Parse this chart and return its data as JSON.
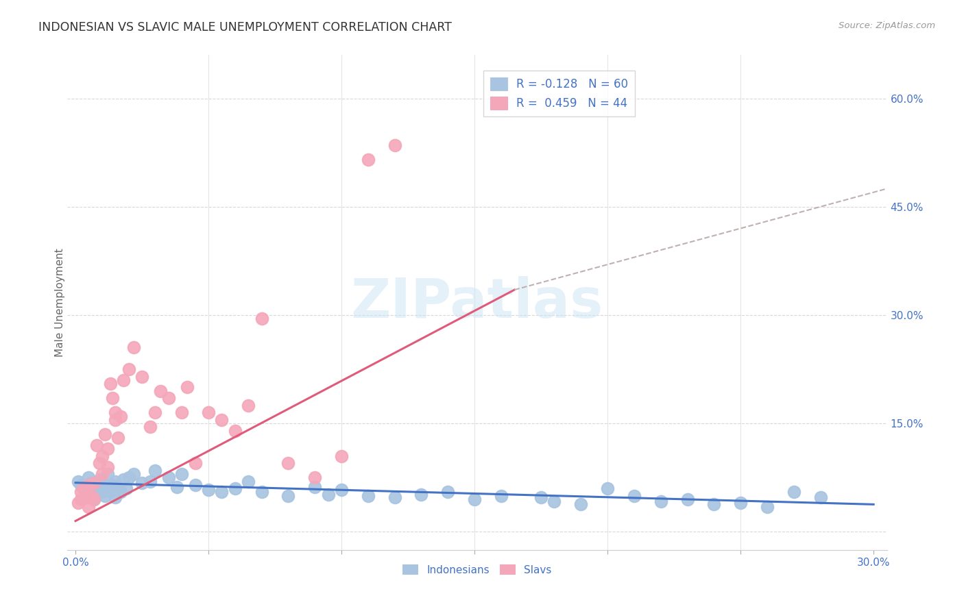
{
  "title": "INDONESIAN VS SLAVIC MALE UNEMPLOYMENT CORRELATION CHART",
  "source": "Source: ZipAtlas.com",
  "ylabel": "Male Unemployment",
  "xlim": [
    0.0,
    0.3
  ],
  "ylim": [
    0.0,
    0.65
  ],
  "xtick_vals": [
    0.0,
    0.05,
    0.1,
    0.15,
    0.2,
    0.25,
    0.3
  ],
  "xtick_labels_shown": {
    "0.0": "0.0%",
    "0.30": "30.0%"
  },
  "ytick_right_vals": [
    0.15,
    0.3,
    0.45,
    0.6
  ],
  "ytick_right_labels": [
    "15.0%",
    "30.0%",
    "45.0%",
    "60.0%"
  ],
  "color_indonesian": "#a8c4e0",
  "color_slav": "#f4a7b9",
  "color_line_indonesian": "#4472c4",
  "color_line_slav": "#e05a7a",
  "color_dashed": "#c0b0b0",
  "color_blue": "#4472c4",
  "color_grid": "#d8d8d8",
  "background_color": "#ffffff",
  "watermark": "ZIPatlas",
  "legend_r1": "R = -0.128",
  "legend_n1": "N = 60",
  "legend_r2": "R =  0.459",
  "legend_n2": "N = 44",
  "ind_x": [
    0.001,
    0.002,
    0.003,
    0.004,
    0.005,
    0.005,
    0.006,
    0.007,
    0.007,
    0.008,
    0.009,
    0.01,
    0.01,
    0.011,
    0.012,
    0.012,
    0.013,
    0.014,
    0.015,
    0.015,
    0.016,
    0.017,
    0.018,
    0.019,
    0.02,
    0.022,
    0.025,
    0.028,
    0.03,
    0.035,
    0.038,
    0.04,
    0.045,
    0.05,
    0.055,
    0.06,
    0.065,
    0.07,
    0.08,
    0.09,
    0.095,
    0.1,
    0.11,
    0.12,
    0.13,
    0.14,
    0.15,
    0.16,
    0.175,
    0.18,
    0.19,
    0.2,
    0.21,
    0.22,
    0.23,
    0.24,
    0.25,
    0.26,
    0.27,
    0.28
  ],
  "ind_y": [
    0.07,
    0.065,
    0.06,
    0.055,
    0.075,
    0.05,
    0.068,
    0.058,
    0.045,
    0.062,
    0.072,
    0.055,
    0.068,
    0.05,
    0.06,
    0.08,
    0.055,
    0.065,
    0.048,
    0.07,
    0.062,
    0.055,
    0.072,
    0.06,
    0.075,
    0.08,
    0.068,
    0.07,
    0.085,
    0.075,
    0.062,
    0.08,
    0.065,
    0.058,
    0.055,
    0.06,
    0.07,
    0.055,
    0.05,
    0.062,
    0.052,
    0.058,
    0.05,
    0.048,
    0.052,
    0.055,
    0.045,
    0.05,
    0.048,
    0.042,
    0.038,
    0.06,
    0.05,
    0.042,
    0.045,
    0.038,
    0.04,
    0.035,
    0.055,
    0.048
  ],
  "slav_x": [
    0.001,
    0.002,
    0.002,
    0.003,
    0.004,
    0.005,
    0.005,
    0.006,
    0.007,
    0.007,
    0.008,
    0.009,
    0.01,
    0.01,
    0.011,
    0.012,
    0.012,
    0.013,
    0.014,
    0.015,
    0.015,
    0.016,
    0.017,
    0.018,
    0.02,
    0.022,
    0.025,
    0.028,
    0.03,
    0.032,
    0.035,
    0.04,
    0.042,
    0.045,
    0.05,
    0.055,
    0.06,
    0.065,
    0.07,
    0.08,
    0.09,
    0.1,
    0.11,
    0.12
  ],
  "slav_y": [
    0.04,
    0.055,
    0.045,
    0.06,
    0.048,
    0.035,
    0.065,
    0.05,
    0.068,
    0.045,
    0.12,
    0.095,
    0.105,
    0.08,
    0.135,
    0.115,
    0.09,
    0.205,
    0.185,
    0.155,
    0.165,
    0.13,
    0.16,
    0.21,
    0.225,
    0.255,
    0.215,
    0.145,
    0.165,
    0.195,
    0.185,
    0.165,
    0.2,
    0.095,
    0.165,
    0.155,
    0.14,
    0.175,
    0.295,
    0.095,
    0.075,
    0.105,
    0.515,
    0.535
  ]
}
